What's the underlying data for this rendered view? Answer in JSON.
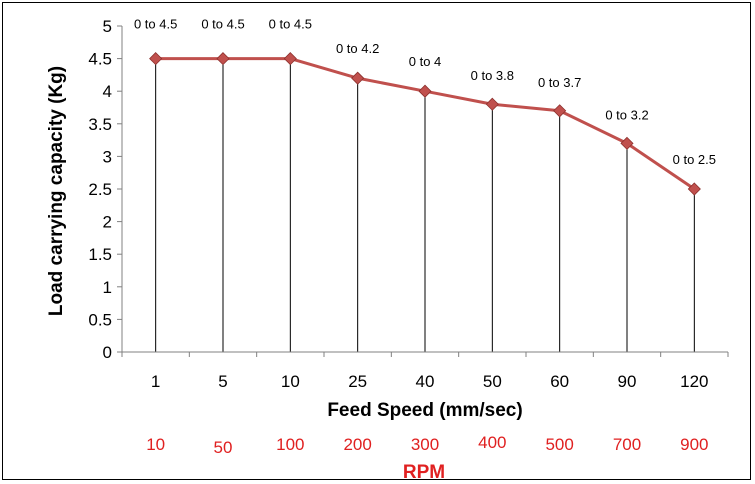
{
  "chart_data": {
    "type": "line",
    "title": "",
    "xlabel": "Feed Speed (mm/sec)",
    "ylabel": "Load carrying capacity (Kg)",
    "categories": [
      "1",
      "5",
      "10",
      "25",
      "40",
      "50",
      "60",
      "90",
      "120"
    ],
    "series": [
      {
        "values": [
          4.5,
          4.5,
          4.5,
          4.2,
          4.0,
          3.8,
          3.7,
          3.2,
          2.5
        ],
        "color": "#c0504d",
        "marker": "diamond"
      }
    ],
    "data_labels": [
      "0 to 4.5",
      "0 to 4.5",
      "0 to 4.5",
      "0 to 4.2",
      "0 to 4",
      "0 to 3.8",
      "0 to 3.7",
      "0 to 3.2",
      "0 to 2.5"
    ],
    "drop_lines": true,
    "ylim": [
      0,
      5
    ],
    "yticks": [
      "0",
      "0.5",
      "1",
      "1.5",
      "2",
      "2.5",
      "3",
      "3.5",
      "4",
      "4.5",
      "5"
    ],
    "grid": false,
    "legend": "none",
    "secondary_axis": {
      "label": "RPM",
      "ticks": [
        "10",
        "50",
        "100",
        "200",
        "300",
        "400",
        "500",
        "700",
        "900"
      ],
      "color": "#e02020"
    }
  }
}
